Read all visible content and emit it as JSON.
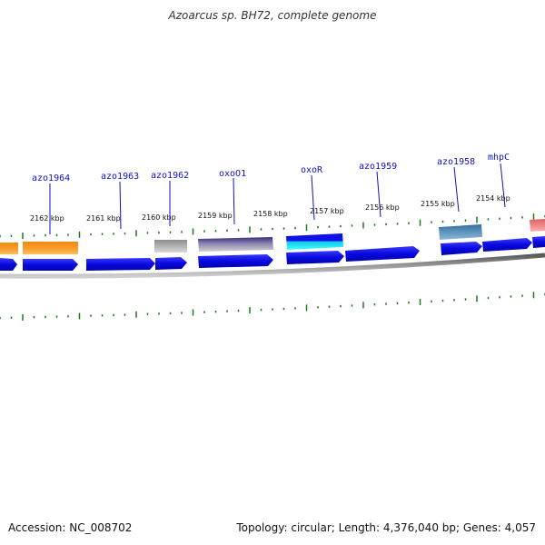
{
  "title": "Azoarcus sp. BH72, complete genome",
  "footer": {
    "accession": "Accession: NC_008702",
    "summary": "Topology: circular; Length: 4,376,040 bp; Genes: 4,057"
  },
  "colors": {
    "cds": "#0a0adc",
    "tick": "#1a7a1a",
    "label": "#1010c0",
    "backbone": "#7a7a7a"
  },
  "kbp_labels": [
    {
      "label": "2162 kbp"
    },
    {
      "label": "2161 kbp"
    },
    {
      "label": "2160 kbp"
    },
    {
      "label": "2159 kbp"
    },
    {
      "label": "2158 kbp"
    },
    {
      "label": "2157 kbp"
    },
    {
      "label": "2156 kbp"
    },
    {
      "label": "2155 kbp"
    },
    {
      "label": "2154 kbp"
    }
  ],
  "gene_labels": [
    {
      "label": "azo1964"
    },
    {
      "label": "azo1963"
    },
    {
      "label": "azo1962"
    },
    {
      "label": "oxoO1"
    },
    {
      "label": "oxoR"
    },
    {
      "label": "azo1959"
    },
    {
      "label": "azo1958"
    },
    {
      "label": "mhpC"
    }
  ]
}
